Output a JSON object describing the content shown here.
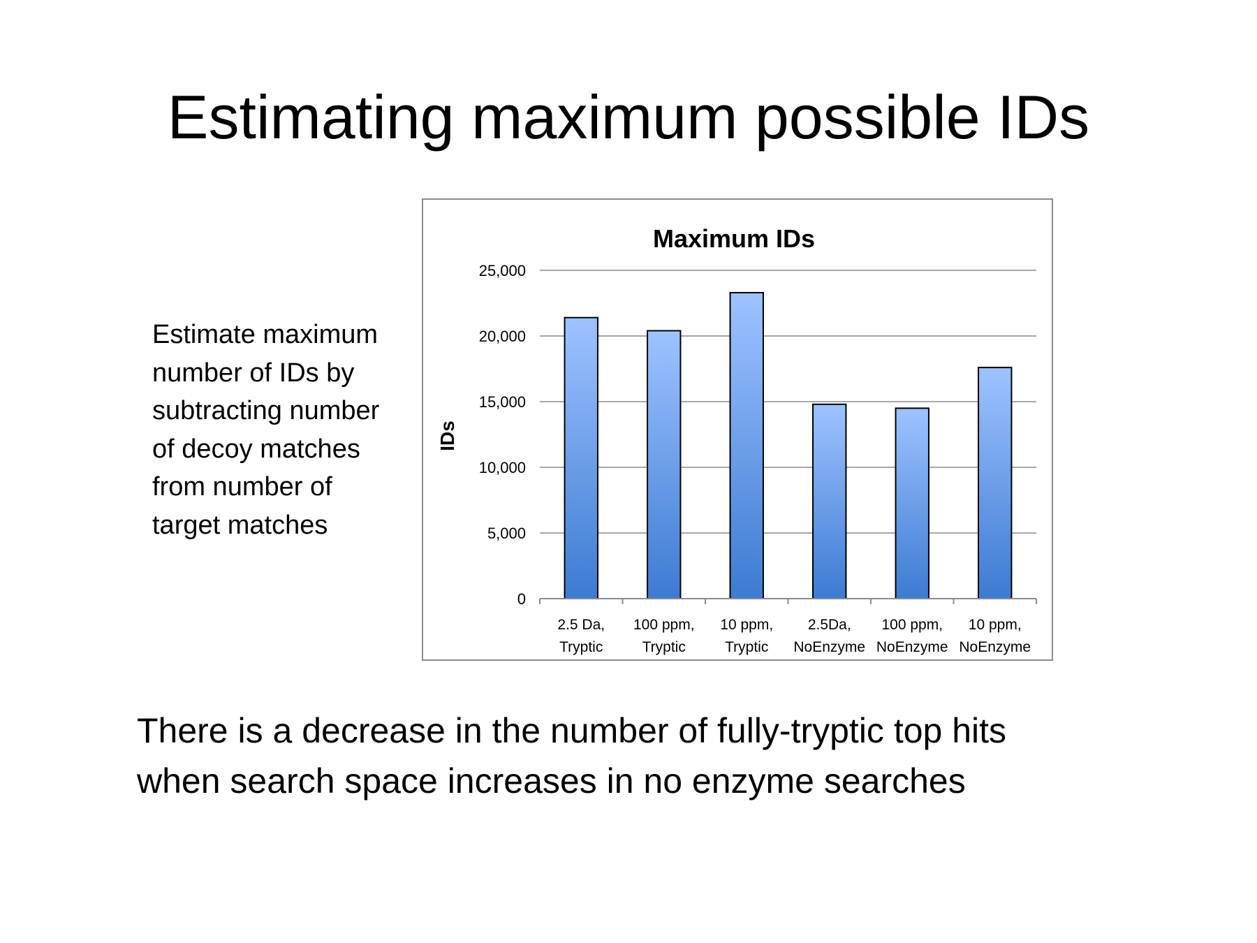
{
  "slide": {
    "title": "Estimating maximum possible IDs",
    "side_text": [
      "Estimate maximum",
      "number of IDs by",
      "subtracting number",
      "of decoy matches",
      "from number of",
      "target matches"
    ],
    "conclusion": [
      "There is a decrease in the number of fully-tryptic top hits",
      "when search space increases in no enzyme searches"
    ]
  },
  "colors": {
    "bar_top": "#9ec3ff",
    "bar_bottom": "#3c7bd2",
    "bar_stroke": "#000000",
    "grid": "#8a8a8a",
    "frame": "#8c8c8c"
  },
  "chart_data": {
    "type": "bar",
    "title": "Maximum IDs",
    "ylabel": "IDs",
    "xlabel": "",
    "categories": [
      [
        "2.5 Da,",
        "Tryptic"
      ],
      [
        "100 ppm,",
        "Tryptic"
      ],
      [
        "10 ppm,",
        "Tryptic"
      ],
      [
        "2.5Da,",
        "NoEnzyme"
      ],
      [
        "100 ppm,",
        "NoEnzyme"
      ],
      [
        "10 ppm,",
        "NoEnzyme"
      ]
    ],
    "values": [
      21400,
      20400,
      23300,
      14800,
      14500,
      17600
    ],
    "ylim": [
      0,
      25000
    ],
    "yticks": [
      0,
      5000,
      10000,
      15000,
      20000,
      25000
    ],
    "ytick_labels": [
      "0",
      "5,000",
      "10,000",
      "15,000",
      "20,000",
      "25,000"
    ],
    "grid": true,
    "legend": "none"
  }
}
